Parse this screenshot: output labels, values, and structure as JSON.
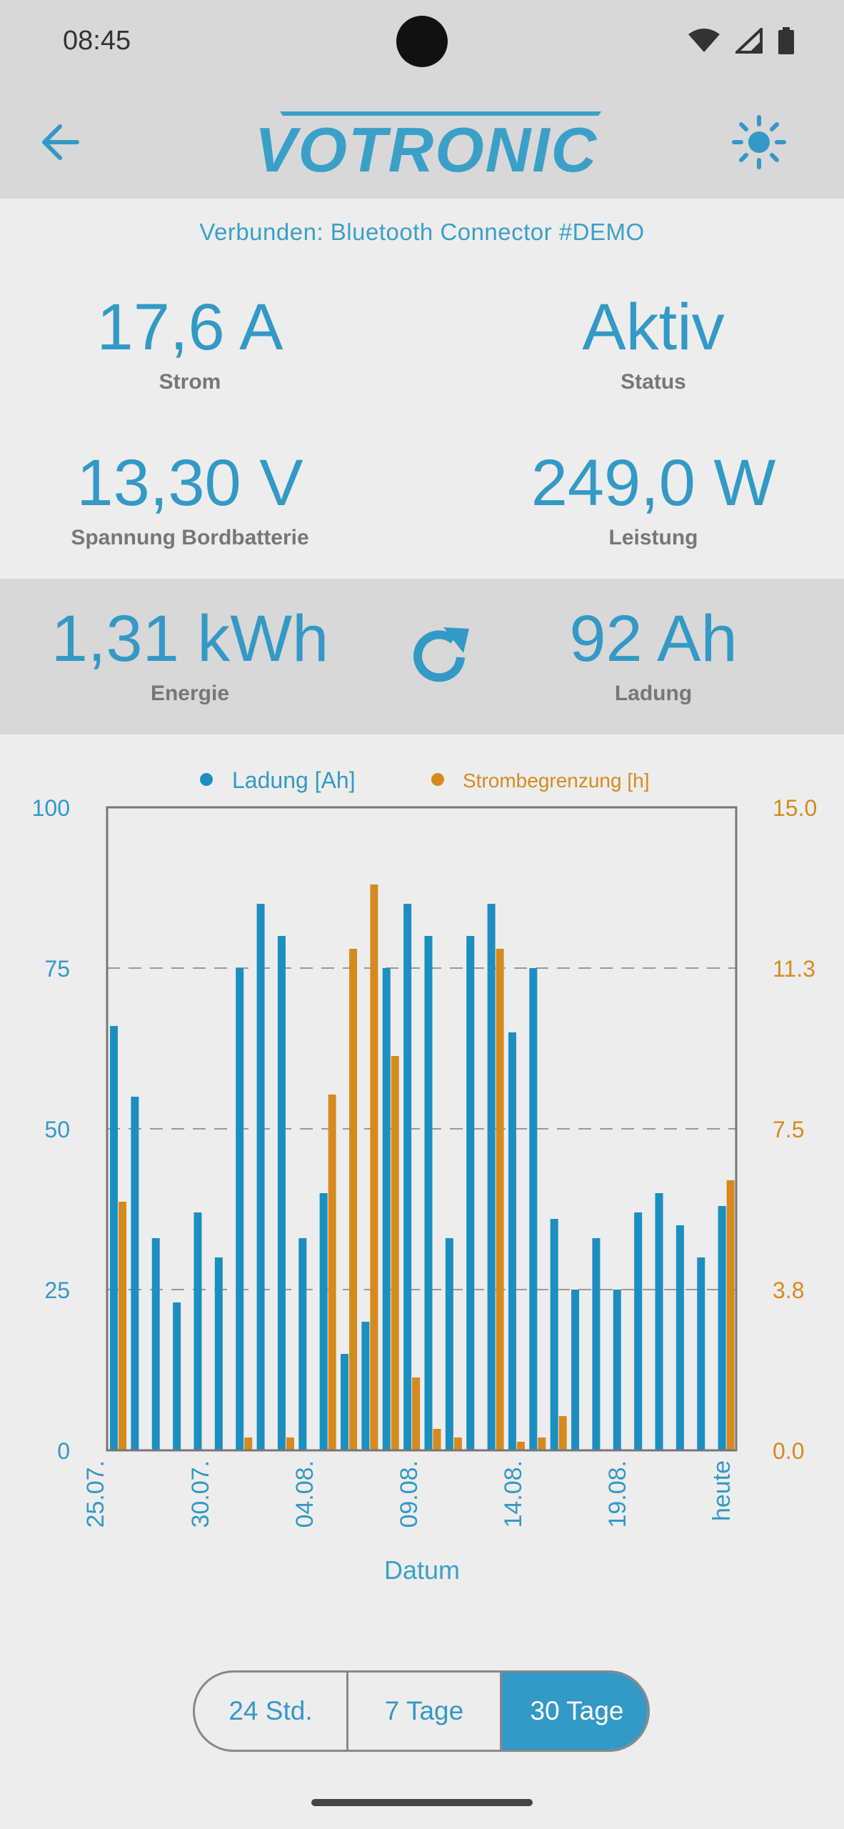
{
  "status_bar": {
    "time": "08:45"
  },
  "header": {
    "logo_text": "VOTRONIC"
  },
  "connection": {
    "text": "Verbunden: Bluetooth Connector #DEMO"
  },
  "metrics": {
    "strom": {
      "value": "17,6 A",
      "label": "Strom"
    },
    "status": {
      "value": "Aktiv",
      "label": "Status"
    },
    "spannung": {
      "value": "13,30 V",
      "label": "Spannung Bordbatterie"
    },
    "leistung": {
      "value": "249,0 W",
      "label": "Leistung"
    },
    "energie": {
      "value": "1,31 kWh",
      "label": "Energie"
    },
    "ladung": {
      "value": "92 Ah",
      "label": "Ladung"
    }
  },
  "colors": {
    "accent": "#3399c6",
    "bar_blue": "#1b8fc0",
    "bar_orange": "#d68a1e"
  },
  "chart_data": {
    "type": "bar",
    "xlabel": "Datum",
    "x_tick_labels": [
      "25.07.",
      "30.07.",
      "04.08.",
      "09.08.",
      "14.08.",
      "19.08.",
      "heute"
    ],
    "legend_position": "top-center",
    "grid": true,
    "y_left": {
      "ticks": [
        "0",
        "25",
        "50",
        "75",
        "100"
      ],
      "range": [
        0,
        100
      ]
    },
    "y_right": {
      "ticks": [
        "0.0",
        "3.8",
        "7.5",
        "11.3",
        "15.0"
      ],
      "range": [
        0,
        15
      ]
    },
    "series": [
      {
        "name": "Ladung [Ah]",
        "axis": "left",
        "values": [
          66,
          55,
          33,
          23,
          37,
          30,
          75,
          85,
          80,
          33,
          40,
          15,
          20,
          75,
          85,
          80,
          33,
          80,
          85,
          65,
          75,
          36,
          25,
          33,
          25,
          37,
          40,
          35,
          30,
          38
        ]
      },
      {
        "name": "Strombegrenzung [h]",
        "axis": "right",
        "values": [
          5.8,
          0,
          0,
          0,
          0,
          0,
          0.3,
          0,
          0.3,
          0,
          8.3,
          11.7,
          13.2,
          9.2,
          1.7,
          0.5,
          0.3,
          0,
          11.7,
          0.2,
          0.3,
          0.8,
          0,
          0,
          0,
          0,
          0,
          0,
          0,
          6.3
        ]
      }
    ]
  },
  "range_toggle": {
    "options": [
      "24 Std.",
      "7 Tage",
      "30 Tage"
    ],
    "selected": "30 Tage"
  }
}
